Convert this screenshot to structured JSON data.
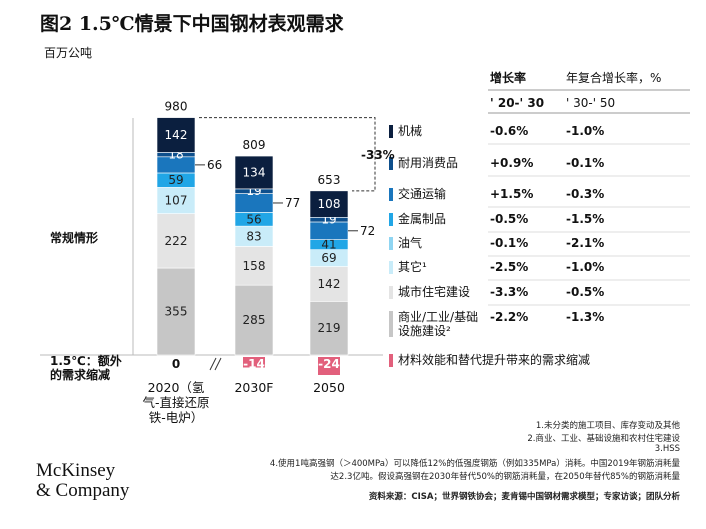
{
  "chart_data": {
    "type": "stacked_bar",
    "title": "图2 1.5℃情景下中国钢材表观需求",
    "subtitle": "百万公吨",
    "growth_header": "增长率",
    "cagr_header": "年复合增长率，%",
    "period_labels": [
      "' 20-' 30",
      "' 30-' 50"
    ],
    "baseline_label": "常规情形",
    "categories": [
      "2020（氢气-直接还原铁-电炉）",
      "2030F",
      "2050"
    ],
    "totals": [
      980,
      809,
      653
    ],
    "change_label": "-33%",
    "series": [
      {
        "name": "机械",
        "color": "#0b1f3f",
        "values": [
          142,
          134,
          108
        ],
        "growth": [
          "-0.6%",
          "-1.0%"
        ]
      },
      {
        "name": "耐用消费品",
        "color": "#0e4f8c",
        "values": [
          18,
          19,
          19
        ],
        "growth": [
          "+0.9%",
          "-0.1%"
        ]
      },
      {
        "name": "交通运输",
        "color": "#1a76bd",
        "values": [
          66,
          77,
          72
        ],
        "growth": [
          "+1.5%",
          "-0.3%"
        ]
      },
      {
        "name": "金属制品",
        "color": "#21a6e6",
        "values": [
          59,
          56,
          41
        ],
        "growth": [
          "-0.5%",
          "-1.5%"
        ]
      },
      {
        "name": "油气",
        "color": "#8fd5f2",
        "values": [
          null,
          null,
          null
        ],
        "growth": [
          "-0.1%",
          "-2.1%"
        ]
      },
      {
        "name": "其它¹",
        "color": "#c9ecf9",
        "values": [
          107,
          83,
          69
        ],
        "growth": [
          "-2.5%",
          "-1.0%"
        ]
      },
      {
        "name": "城市住宅建设",
        "color": "#e4e4e4",
        "values": [
          222,
          158,
          142
        ],
        "growth": [
          "-3.3%",
          "-0.5%"
        ]
      },
      {
        "name": "商业/工业/基础设施建设²",
        "color": "#c6c6c6",
        "values": [
          355,
          285,
          219
        ],
        "growth": [
          "-2.2%",
          "-1.3%"
        ]
      }
    ],
    "reduction": {
      "label": "1.5℃：额外的需求缩减",
      "name": "材料效能和替代提升带来的需求缩减",
      "color": "#e2607c",
      "values": [
        0,
        -14,
        -24
      ]
    }
  },
  "footnotes": [
    "1.未分类的施工项目、库存变动及其他",
    "2.商业、工业、基础设施和农村住宅建设",
    "3.HSS",
    "4.使用1吨高强钢（＞400MPa）可以降低12%的低强度钢筋（例如335MPa）消耗。中国2019年钢筋消耗量",
    "达2.3亿吨。假设高强钢在2030年替代50%的钢筋消耗量，在2050年替代85%的钢筋消耗量"
  ],
  "source": "资料来源：CISA；世界钢铁协会；麦肯锡中国钢材需求模型；专家访谈；团队分析",
  "logo": [
    "McKinsey",
    "& Company"
  ]
}
